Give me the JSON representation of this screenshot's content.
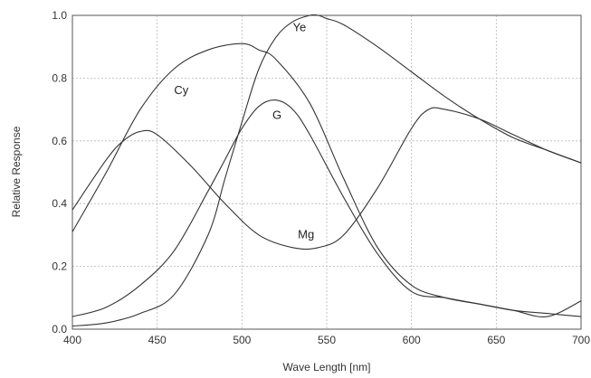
{
  "chart_data": {
    "type": "line",
    "xlabel": "Wave Length [nm]",
    "ylabel": "Relative Response",
    "xlim": [
      400,
      700
    ],
    "ylim": [
      0,
      1.0
    ],
    "x_ticks": [
      "400",
      "450",
      "500",
      "550",
      "600",
      "650",
      "700"
    ],
    "y_ticks": [
      "0.0",
      "0.2",
      "0.4",
      "0.6",
      "0.8",
      "1.0"
    ],
    "grid": true,
    "series": [
      {
        "name": "Ye",
        "label_at": [
          530,
          0.95
        ],
        "x": [
          400,
          420,
          440,
          460,
          480,
          490,
          500,
          510,
          520,
          530,
          540,
          545,
          550,
          560,
          580,
          600,
          620,
          640,
          660,
          680,
          700
        ],
        "y": [
          0.01,
          0.02,
          0.05,
          0.11,
          0.3,
          0.48,
          0.66,
          0.83,
          0.93,
          0.98,
          1.0,
          1.0,
          0.99,
          0.97,
          0.9,
          0.82,
          0.74,
          0.67,
          0.61,
          0.57,
          0.53
        ]
      },
      {
        "name": "Cy",
        "label_at": [
          460,
          0.75
        ],
        "x": [
          400,
          420,
          440,
          460,
          480,
          500,
          510,
          520,
          540,
          560,
          580,
          600,
          620,
          640,
          660,
          680,
          700
        ],
        "y": [
          0.31,
          0.5,
          0.7,
          0.83,
          0.89,
          0.91,
          0.89,
          0.86,
          0.72,
          0.48,
          0.26,
          0.14,
          0.1,
          0.08,
          0.06,
          0.05,
          0.04
        ]
      },
      {
        "name": "G",
        "label_at": [
          518,
          0.67
        ],
        "x": [
          400,
          420,
          440,
          460,
          480,
          490,
          500,
          510,
          520,
          530,
          540,
          560,
          580,
          600,
          620,
          640,
          660,
          680,
          700
        ],
        "y": [
          0.04,
          0.07,
          0.14,
          0.25,
          0.44,
          0.54,
          0.64,
          0.71,
          0.73,
          0.7,
          0.62,
          0.42,
          0.24,
          0.12,
          0.1,
          0.08,
          0.06,
          0.04,
          0.09
        ]
      },
      {
        "name": "Mg",
        "label_at": [
          533,
          0.29
        ],
        "x": [
          400,
          420,
          430,
          440,
          450,
          470,
          490,
          510,
          530,
          545,
          560,
          580,
          600,
          610,
          620,
          640,
          660,
          680,
          700
        ],
        "y": [
          0.38,
          0.54,
          0.6,
          0.63,
          0.62,
          0.52,
          0.4,
          0.3,
          0.26,
          0.26,
          0.3,
          0.45,
          0.64,
          0.7,
          0.7,
          0.67,
          0.62,
          0.57,
          0.53
        ]
      }
    ]
  }
}
